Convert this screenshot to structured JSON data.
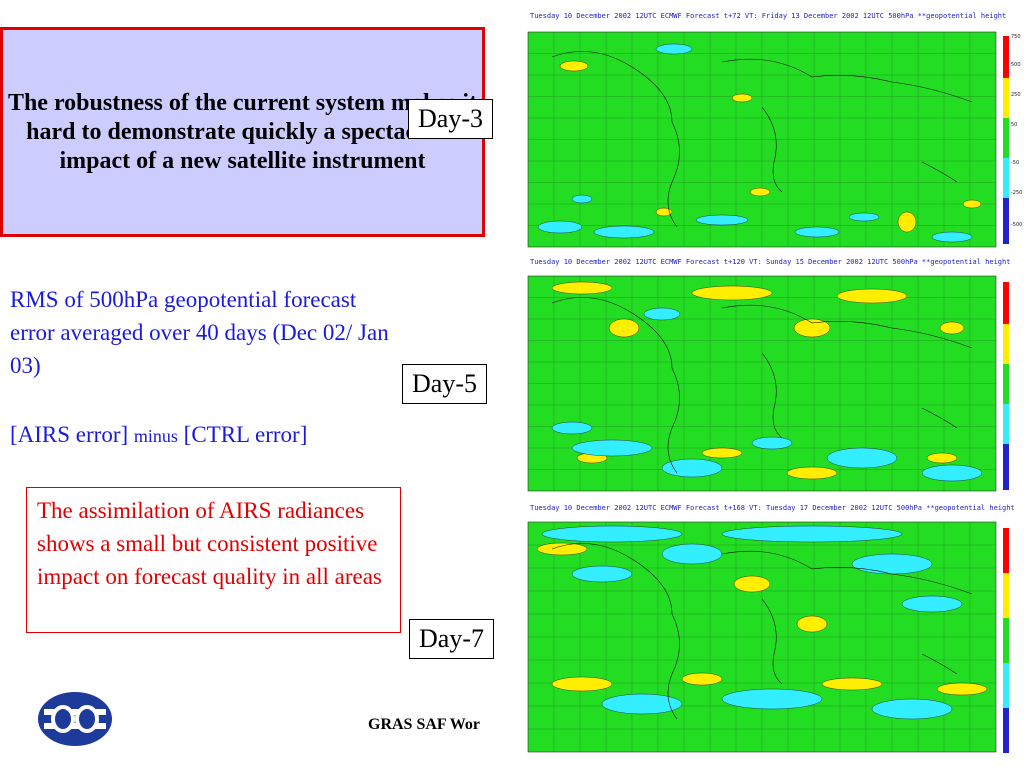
{
  "headline": "The robustness of the current system makes it hard to demonstrate quickly a spectacular impact of a new satellite instrument",
  "rms_text": "RMS of 500hPa geopotential forecast error averaged over 40 days (Dec 02/ Jan 03)",
  "formula": {
    "left": "[AIRS error]",
    "middle": "minus",
    "right": "[CTRL error]"
  },
  "conclusion": "The assimilation of AIRS radiances shows a small but consistent positive impact on forecast quality in all areas",
  "footer": "GRAS SAF Wor",
  "maps": [
    {
      "day_label": "Day-3",
      "title": "Tuesday 10 December 2002 12UTC ECMWF  Forecast t+72 VT: Friday 13 December 2002 12UTC 500hPa **geopotential height"
    },
    {
      "day_label": "Day-5",
      "title": "Tuesday 10 December 2002 12UTC ECMWF  Forecast t+120 VT: Sunday 15 December 2002 12UTC 500hPa **geopotential height"
    },
    {
      "day_label": "Day-7",
      "title": "Tuesday 10 December 2002 12UTC ECMWF  Forecast t+168 VT: Tuesday 17 December 2002 12UTC 500hPa **geopotential height"
    }
  ],
  "colorbar_labels": [
    "750",
    "500",
    "250",
    "50",
    "-50",
    "-250",
    "-500"
  ],
  "colors": {
    "field": "#22dd22",
    "positive": "#ffee00",
    "negative": "#33eeff",
    "deep_negative": "#2266ff",
    "strong_positive": "#ff0000",
    "text_blue": "#1a1adc",
    "text_red": "#e00000",
    "headline_bg": "#ccccff"
  },
  "icons": {
    "logo": "ecmwf-logo"
  }
}
